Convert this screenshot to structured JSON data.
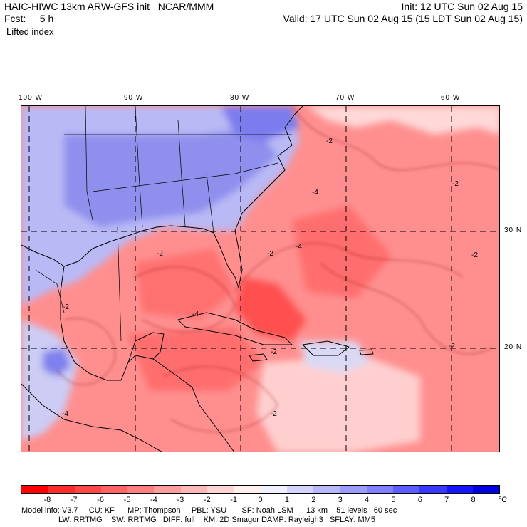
{
  "header": {
    "model_title": "HAIC-HIWC 13km ARW-GFS init   NCAR/MMM",
    "forecast": "Fcst:     5 h",
    "field": "Lifted index",
    "init": "Init: 12 UTC Sun 02 Aug 15",
    "valid": "Valid: 17 UTC Sun 02 Aug 15 (15 LDT Sun 02 Aug 15)"
  },
  "map": {
    "longitude_labels": [
      "100 W",
      "90 W",
      "80 W",
      "70 W",
      "60 W"
    ],
    "latitude_labels": [
      "30 N",
      "20 N"
    ],
    "contour_labels": [
      "-2",
      "-4",
      "-2",
      "-2",
      "-2",
      "-4",
      "-2",
      "-2",
      "-4",
      "-2",
      "-4",
      "-2",
      "-2"
    ]
  },
  "colorbar": {
    "tick_labels": [
      "-8",
      "-7",
      "-6",
      "-5",
      "-4",
      "-3",
      "-2",
      "-1",
      "0",
      "1",
      "2",
      "3",
      "4",
      "5",
      "6",
      "7",
      "8"
    ],
    "unit": "°C",
    "colors": [
      "#ff0000",
      "#ff2a2a",
      "#ff4747",
      "#ff6363",
      "#ff7f7f",
      "#ff9c9c",
      "#ffb8b8",
      "#ffd4d4",
      "#fff0f0",
      "#f0f0ff",
      "#d4d4ff",
      "#b8b8ff",
      "#9c9cff",
      "#7f7fff",
      "#5c5cff",
      "#3838ff",
      "#1414ff",
      "#0000e0"
    ]
  },
  "model_info": {
    "line1": "Model info: V3.7     CU: KF      MP: Thompson     PBL: YSU       SF: Noah LSM      13 km    51 levels   60 sec",
    "line2": "                 LW: RRTMG    SW: RRTMG   DIFF: full    KM: 2D Smagor DAMP: Rayleigh3   SFLAY: MM5"
  }
}
